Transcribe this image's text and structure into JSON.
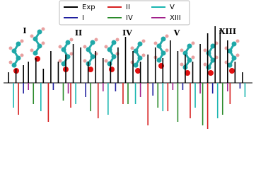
{
  "chart_data": {
    "type": "stick",
    "xlim": [
      0,
      100
    ],
    "ylim": [
      -0.7,
      1.0
    ],
    "labels": [
      "I",
      "II",
      "IV",
      "V",
      "XIII"
    ],
    "series": [
      {
        "name": "Exp",
        "color": "#000000",
        "x": [
          2,
          5,
          8,
          10,
          13,
          16,
          19,
          22,
          25,
          28,
          31,
          34,
          37,
          40,
          43,
          46,
          49,
          52,
          55,
          58,
          61,
          64,
          67,
          70,
          73,
          76,
          79,
          82,
          85,
          87,
          90,
          93,
          96
        ],
        "values": [
          0.15,
          0.2,
          0.25,
          0.3,
          0.35,
          0.2,
          0.45,
          0.3,
          0.4,
          0.55,
          0.5,
          0.3,
          0.45,
          0.35,
          0.3,
          0.5,
          0.65,
          0.45,
          0.3,
          0.4,
          0.5,
          0.35,
          0.6,
          0.45,
          0.4,
          0.3,
          0.55,
          0.7,
          0.8,
          0.75,
          0.6,
          0.3,
          0.15
        ]
      },
      {
        "name": "I",
        "color": "#1f1f9e",
        "x": [
          8,
          20,
          33,
          45,
          60,
          72,
          84,
          95
        ],
        "values": [
          -0.15,
          -0.1,
          -0.2,
          -0.12,
          -0.18,
          -0.1,
          -0.15,
          -0.08
        ]
      },
      {
        "name": "II",
        "color": "#d62020",
        "x": [
          6,
          18,
          27,
          38,
          48,
          58,
          66,
          75,
          82,
          91
        ],
        "values": [
          -0.45,
          -0.55,
          -0.35,
          -0.5,
          -0.3,
          -0.6,
          -0.4,
          -0.5,
          -0.65,
          -0.3
        ]
      },
      {
        "name": "IV",
        "color": "#2a8a2a",
        "x": [
          12,
          24,
          35,
          50,
          62,
          70,
          80,
          88
        ],
        "values": [
          -0.3,
          -0.25,
          -0.4,
          -0.3,
          -0.35,
          -0.55,
          -0.6,
          -0.45
        ]
      },
      {
        "name": "V",
        "color": "#1ab5b0",
        "x": [
          4,
          15,
          29,
          42,
          53,
          64,
          77,
          86,
          97
        ],
        "values": [
          -0.35,
          -0.4,
          -0.3,
          -0.45,
          -0.3,
          -0.4,
          -0.35,
          -0.5,
          -0.2
        ]
      },
      {
        "name": "XIII",
        "color": "#a0208a",
        "x": [
          10,
          26,
          40,
          55,
          68,
          79,
          90
        ],
        "values": [
          -0.1,
          -0.15,
          -0.12,
          -0.2,
          -0.1,
          -0.15,
          -0.12
        ]
      }
    ]
  }
}
